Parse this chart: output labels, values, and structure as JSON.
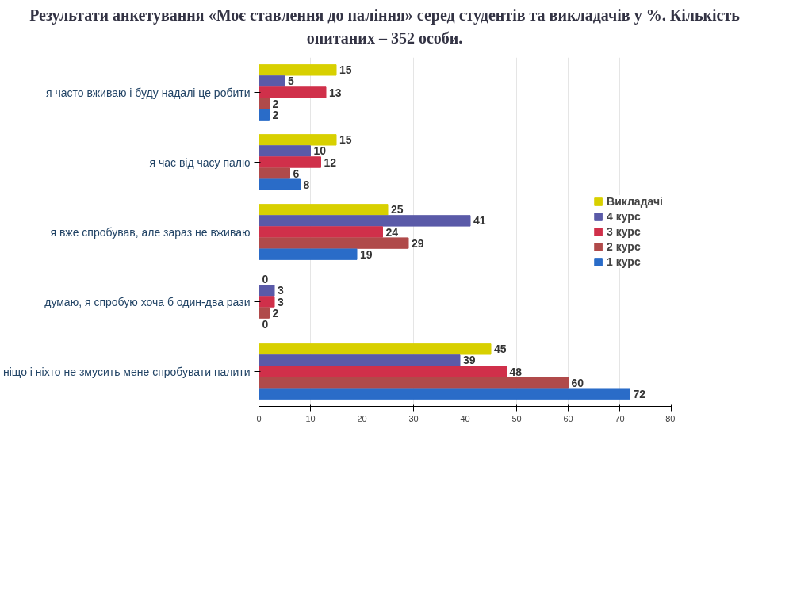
{
  "chart_data": {
    "type": "bar",
    "orientation": "horizontal",
    "title": "Результати анкетування «Моє ставлення до паління» серед студентів та викладачів у %. Кількість опитаних – 352 особи.",
    "categories": [
      "я часто вживаю і буду надалі це робити",
      "я час від часу палю",
      "я вже спробував, але зараз не вживаю",
      "думаю, я спробую хоча б один-два рази",
      "ніщо і ніхто не змусить мене спробувати палити"
    ],
    "series": [
      {
        "name": "Викладачі",
        "color": "#d8d000",
        "values": [
          15,
          15,
          25,
          0,
          45
        ]
      },
      {
        "name": "4 курс",
        "color": "#5a5aa8",
        "values": [
          5,
          10,
          41,
          3,
          39
        ]
      },
      {
        "name": "3 курс",
        "color": "#d0304a",
        "values": [
          13,
          12,
          24,
          3,
          48
        ]
      },
      {
        "name": "2 курс",
        "color": "#b04a4a",
        "values": [
          2,
          6,
          29,
          2,
          60
        ]
      },
      {
        "name": "1 курс",
        "color": "#2a6cc8",
        "values": [
          2,
          8,
          19,
          0,
          72
        ]
      }
    ],
    "xlim": [
      0,
      80
    ],
    "xticks": [
      0,
      10,
      20,
      30,
      40,
      50,
      60,
      70,
      80
    ],
    "grid": "x",
    "legend": "right",
    "data_labels": true
  }
}
